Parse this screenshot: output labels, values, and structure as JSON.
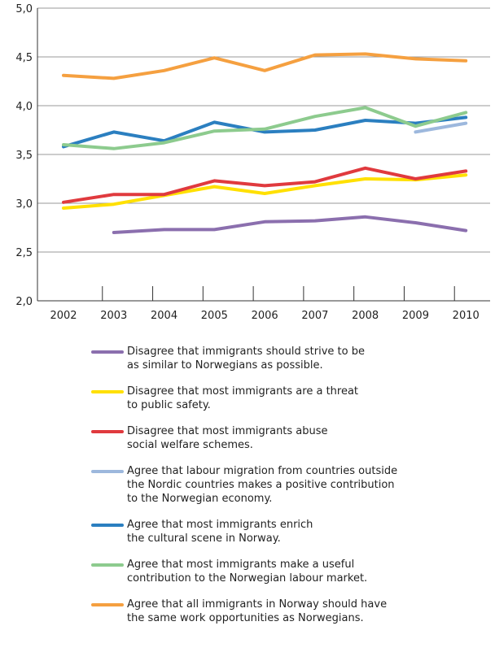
{
  "chart_data": {
    "type": "line",
    "title": "",
    "xlabel": "",
    "ylabel": "",
    "x": [
      "2002",
      "2003",
      "2004",
      "2005",
      "2006",
      "2007",
      "2008",
      "2009",
      "2010"
    ],
    "ylim": [
      2.0,
      5.0
    ],
    "yticks": [
      "2,0",
      "2,5",
      "3,0",
      "3,5",
      "4,0",
      "4,5",
      "5,0"
    ],
    "grid": "horizontal",
    "legend_position": "bottom",
    "series": [
      {
        "name": "Disagree that immigrants should strive to be\nas similar to Norwegians as possible.",
        "color": "#8B6FAE",
        "values": [
          null,
          2.7,
          2.73,
          2.73,
          2.81,
          2.82,
          2.86,
          2.8,
          2.72
        ]
      },
      {
        "name": "Disagree that most immigrants are a threat\nto public safety.",
        "color": "#FFE000",
        "values": [
          2.95,
          2.99,
          3.08,
          3.17,
          3.1,
          3.18,
          3.25,
          3.24,
          3.29
        ]
      },
      {
        "name": "Disagree that most immigrants abuse\nsocial welfare schemes.",
        "color": "#E03A3E",
        "values": [
          3.01,
          3.09,
          3.09,
          3.23,
          3.18,
          3.22,
          3.36,
          3.25,
          3.33
        ]
      },
      {
        "name": "Agree that labour migration from countries outside\nthe Nordic countries makes a positive contribution\nto the Norwegian economy.",
        "color": "#9DB8DD",
        "values": [
          null,
          null,
          null,
          null,
          null,
          null,
          null,
          3.73,
          3.82
        ]
      },
      {
        "name": "Agree that most immigrants enrich\nthe cultural scene in Norway.",
        "color": "#2B7FC0",
        "values": [
          3.58,
          3.73,
          3.64,
          3.83,
          3.73,
          3.75,
          3.85,
          3.82,
          3.88
        ]
      },
      {
        "name": "Agree that most immigrants make a useful\ncontribution to the Norwegian labour market.",
        "color": "#8DCB8E",
        "values": [
          3.6,
          3.56,
          3.62,
          3.74,
          3.76,
          3.89,
          3.98,
          3.79,
          3.93
        ]
      },
      {
        "name": "Agree that all immigrants in Norway should have\nthe same work opportunities as Norwegians.",
        "color": "#F5A040",
        "values": [
          4.31,
          4.28,
          4.36,
          4.49,
          4.36,
          4.52,
          4.53,
          4.48,
          4.46
        ]
      }
    ]
  }
}
